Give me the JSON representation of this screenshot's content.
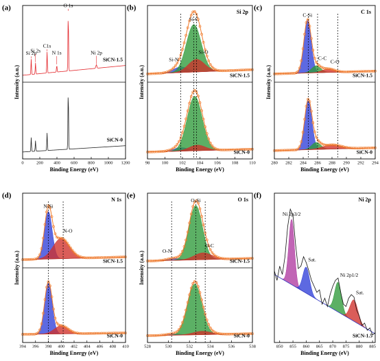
{
  "chart_data": [
    {
      "type": "line",
      "panel": "(a)",
      "xlabel": "Binding Energy (eV)",
      "ylabel": "Intensity (a.u.)",
      "xlim": [
        0,
        1200
      ],
      "xticks": [
        0,
        200,
        400,
        600,
        800,
        1000,
        1200
      ],
      "plots": [
        {
          "sample": "SiCN-1.5",
          "color": "#e3262b",
          "ylim": [
            0,
            100
          ],
          "background": [
            6,
            20
          ],
          "peaks": [
            {
              "name": "Si 2p",
              "center": 100,
              "height": 22,
              "fwhm": 8
            },
            {
              "name": "Si 2s",
              "center": 150,
              "height": 16,
              "fwhm": 8
            },
            {
              "name": "C1s",
              "center": 285,
              "height": 30,
              "fwhm": 8
            },
            {
              "name": "N 1s",
              "center": 398,
              "height": 10,
              "fwhm": 8
            },
            {
              "name": "O 1s",
              "center": 532,
              "height": 85,
              "fwhm": 8
            },
            {
              "name": "Ni 2p",
              "center": 860,
              "height": 5,
              "fwhm": 14
            }
          ]
        },
        {
          "sample": "SiCN-0",
          "color": "#222222",
          "ylim": [
            0,
            100
          ],
          "background": [
            6,
            15
          ],
          "peaks": [
            {
              "center": 100,
              "height": 20,
              "fwhm": 8
            },
            {
              "center": 150,
              "height": 15,
              "fwhm": 8
            },
            {
              "center": 285,
              "height": 25,
              "fwhm": 8
            },
            {
              "center": 532,
              "height": 88,
              "fwhm": 8
            }
          ]
        }
      ]
    },
    {
      "type": "area",
      "panel": "(b)",
      "title": "Si 2p",
      "xlabel": "Binding Energy (eV)",
      "ylabel": "Intensity (a.u.)",
      "xlim": [
        98,
        110
      ],
      "xticks": [
        98,
        100,
        102,
        104,
        106,
        108,
        110
      ],
      "guides": [
        101.8,
        103.3,
        103.6
      ],
      "fit_color": "#f07a2a",
      "plots": [
        {
          "sample": "SiCN-1.5",
          "ylim": [
            0,
            100
          ],
          "background": [
            8,
            14
          ],
          "peaks": [
            {
              "name": "Si-N",
              "color": "#2f3fd8",
              "center": 101.8,
              "height": 8,
              "fwhm": 2
            },
            {
              "name": "Si-C",
              "color": "#2e9a3a",
              "center": 103.3,
              "height": 68,
              "fwhm": 2
            },
            {
              "name": "Si-O",
              "color": "#d0302a",
              "center": 103.6,
              "height": 18,
              "fwhm": 2.2
            }
          ]
        },
        {
          "sample": "SiCN-0",
          "ylim": [
            0,
            100
          ],
          "background": [
            6,
            10
          ],
          "peaks": [
            {
              "color": "#2f3fd8",
              "center": 101.8,
              "height": 5,
              "fwhm": 2
            },
            {
              "color": "#2e9a3a",
              "center": 103.4,
              "height": 78,
              "fwhm": 2
            },
            {
              "color": "#d0302a",
              "center": 103.7,
              "height": 8,
              "fwhm": 2.2
            }
          ]
        }
      ]
    },
    {
      "type": "area",
      "panel": "(c)",
      "title": "C 1s",
      "xlabel": "Binding Energy (eV)",
      "ylabel": "Intensity (a.u.)",
      "xlim": [
        280,
        294
      ],
      "xticks": [
        280,
        282,
        284,
        286,
        288,
        290,
        292,
        294
      ],
      "guides": [
        284.7,
        286,
        288.8
      ],
      "fit_color": "#f07a2a",
      "plots": [
        {
          "sample": "SiCN-1.5",
          "ylim": [
            0,
            100
          ],
          "background": [
            8,
            12
          ],
          "peaks": [
            {
              "name": "C-Si",
              "color": "#2f3fd8",
              "center": 284.6,
              "height": 75,
              "fwhm": 1.2
            },
            {
              "name": "C-C",
              "color": "#2e9a3a",
              "center": 285.8,
              "height": 10,
              "fwhm": 1.5
            },
            {
              "name": "C-O",
              "color": "#d0302a",
              "center": 287.5,
              "height": 5,
              "fwhm": 2
            }
          ]
        },
        {
          "sample": "SiCN-0",
          "ylim": [
            0,
            100
          ],
          "background": [
            8,
            12
          ],
          "peaks": [
            {
              "color": "#2f3fd8",
              "center": 284.7,
              "height": 70,
              "fwhm": 1.2
            },
            {
              "color": "#2e9a3a",
              "center": 285.8,
              "height": 10,
              "fwhm": 1.5
            },
            {
              "color": "#d0302a",
              "center": 288,
              "height": 6,
              "fwhm": 3
            }
          ]
        }
      ]
    },
    {
      "type": "area",
      "panel": "(d)",
      "title": "N 1s",
      "xlabel": "Binding Energy (eV)",
      "ylabel": "Intensity (a.u.)",
      "xlim": [
        394,
        410
      ],
      "xticks": [
        394,
        396,
        398,
        400,
        402,
        404,
        406,
        408,
        410
      ],
      "guides": [
        398,
        400.3
      ],
      "fit_color": "#f07a2a",
      "plots": [
        {
          "sample": "SiCN-1.5",
          "ylim": [
            0,
            100
          ],
          "background": [
            8,
            12
          ],
          "peaks": [
            {
              "name": "N-Si",
              "color": "#2f3fd8",
              "center": 398,
              "height": 70,
              "fwhm": 1.4
            },
            {
              "name": "N-O",
              "color": "#d0302a",
              "center": 400,
              "height": 30,
              "fwhm": 3
            }
          ]
        },
        {
          "sample": "SiCN-0",
          "ylim": [
            0,
            100
          ],
          "background": [
            8,
            10
          ],
          "peaks": [
            {
              "color": "#2f3fd8",
              "center": 398,
              "height": 75,
              "fwhm": 1.4
            },
            {
              "color": "#d0302a",
              "center": 400,
              "height": 12,
              "fwhm": 2.5
            }
          ]
        }
      ]
    },
    {
      "type": "area",
      "panel": "(e)",
      "title": "O 1s",
      "xlabel": "Binding Energy (eV)",
      "ylabel": "Intensity (a.u.)",
      "xlim": [
        528,
        538
      ],
      "xticks": [
        528,
        530,
        532,
        534,
        536,
        538
      ],
      "guides": [
        530.3,
        532.6,
        533.5
      ],
      "fit_color": "#f07a2a",
      "plots": [
        {
          "sample": "SiCN-1.5",
          "ylim": [
            0,
            100
          ],
          "background": [
            6,
            10
          ],
          "peaks": [
            {
              "name": "O-N",
              "color": "#2f3fd8",
              "center": 530.5,
              "height": 3,
              "fwhm": 1.5
            },
            {
              "name": "O-Si",
              "color": "#2e9a3a",
              "center": 532.6,
              "height": 80,
              "fwhm": 1.5
            },
            {
              "name": "O-C",
              "color": "#d0302a",
              "center": 533.3,
              "height": 10,
              "fwhm": 2
            }
          ]
        },
        {
          "sample": "SiCN-0",
          "ylim": [
            0,
            100
          ],
          "background": [
            6,
            9
          ],
          "peaks": [
            {
              "color": "#2f3fd8",
              "center": 530.5,
              "height": 2,
              "fwhm": 1.5
            },
            {
              "color": "#2e9a3a",
              "center": 532.5,
              "height": 75,
              "fwhm": 1.6
            },
            {
              "color": "#d0302a",
              "center": 533.2,
              "height": 5,
              "fwhm": 2
            }
          ]
        }
      ]
    },
    {
      "type": "area",
      "panel": "(f)",
      "title": "Ni 2p",
      "xlabel": "Binding Energy (eV)",
      "xlim": [
        848,
        886
      ],
      "xticks": [
        850,
        855,
        860,
        865,
        870,
        875,
        880,
        885
      ],
      "plots": [
        {
          "sample": "SiCN-1.5",
          "ylim": [
            0,
            120
          ],
          "background": [
            55,
            5
          ],
          "background_color": "#2f3fd8",
          "peaks": [
            {
              "name": "Ni 2p3/2",
              "color": "#b03aa0",
              "center": 854.5,
              "height": 55,
              "fwhm": 2.5
            },
            {
              "name": "Sat.",
              "color": "#2f3fd8",
              "center": 860,
              "height": 22,
              "fwhm": 3
            },
            {
              "name": "Ni 2p1/2",
              "color": "#2e9a3a",
              "center": 872,
              "height": 25,
              "fwhm": 3
            },
            {
              "name": "Sat.",
              "color": "#d0302a",
              "center": 878,
              "height": 18,
              "fwhm": 3.5
            }
          ],
          "raw": {
            "color": "#111111",
            "x": [
              848,
              849,
              850,
              851,
              852,
              853,
              854,
              855,
              856,
              857,
              858,
              859,
              860,
              861,
              862,
              863,
              864,
              865,
              866,
              867,
              868,
              869,
              870,
              871,
              872,
              873,
              874,
              875,
              876,
              877,
              878,
              879,
              880,
              881,
              882,
              883,
              884,
              885,
              886
            ],
            "values": [
              58,
              50,
              62,
              55,
              70,
              95,
              110,
              105,
              80,
              60,
              62,
              70,
              65,
              58,
              50,
              45,
              40,
              42,
              30,
              35,
              28,
              38,
              45,
              50,
              52,
              40,
              30,
              28,
              35,
              38,
              36,
              25,
              20,
              12,
              14,
              8,
              10,
              4,
              6
            ]
          }
        }
      ]
    }
  ]
}
